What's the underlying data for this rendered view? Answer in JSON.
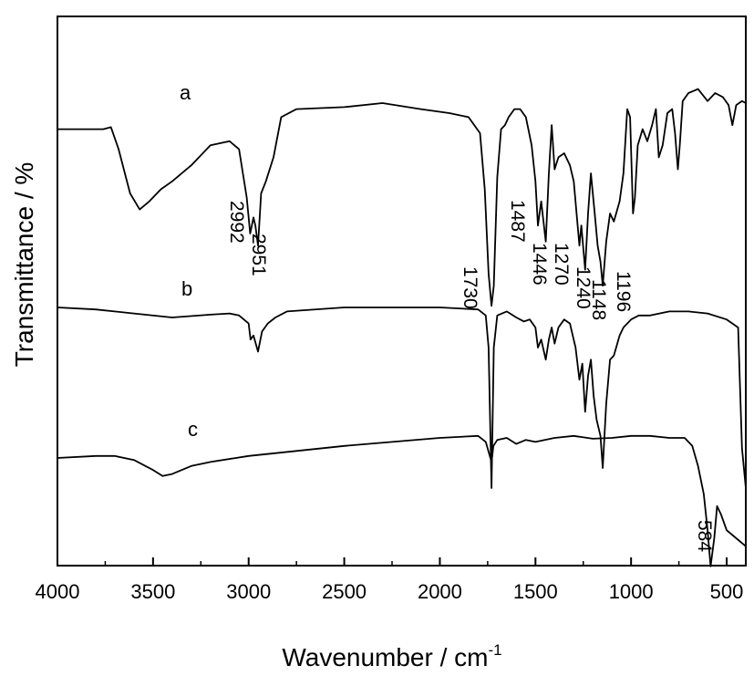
{
  "chart_data": {
    "type": "line",
    "title": "",
    "xlabel": "Wavenumber / cm",
    "xlabel_sup": "-1",
    "ylabel": "Transmittance / %",
    "xlim": [
      4000,
      400
    ],
    "x_reversed": true,
    "xticks": [
      4000,
      3500,
      3000,
      2500,
      2000,
      1500,
      1000,
      500
    ],
    "yticks_shown": false,
    "grid": false,
    "series": [
      {
        "name": "a",
        "points": [
          [
            4000,
            0.09
          ],
          [
            3850,
            0.09
          ],
          [
            3760,
            0.09
          ],
          [
            3720,
            0.085
          ],
          [
            3680,
            0.14
          ],
          [
            3620,
            0.25
          ],
          [
            3570,
            0.29
          ],
          [
            3520,
            0.27
          ],
          [
            3460,
            0.24
          ],
          [
            3400,
            0.22
          ],
          [
            3300,
            0.18
          ],
          [
            3200,
            0.13
          ],
          [
            3100,
            0.12
          ],
          [
            3050,
            0.14
          ],
          [
            3010,
            0.26
          ],
          [
            2992,
            0.35
          ],
          [
            2975,
            0.31
          ],
          [
            2965,
            0.33
          ],
          [
            2951,
            0.38
          ],
          [
            2935,
            0.25
          ],
          [
            2910,
            0.22
          ],
          [
            2870,
            0.16
          ],
          [
            2830,
            0.06
          ],
          [
            2750,
            0.04
          ],
          [
            2500,
            0.035
          ],
          [
            2300,
            0.025
          ],
          [
            2100,
            0.04
          ],
          [
            1950,
            0.05
          ],
          [
            1850,
            0.06
          ],
          [
            1790,
            0.1
          ],
          [
            1765,
            0.24
          ],
          [
            1745,
            0.45
          ],
          [
            1730,
            0.53
          ],
          [
            1718,
            0.48
          ],
          [
            1700,
            0.21
          ],
          [
            1680,
            0.09
          ],
          [
            1660,
            0.08
          ],
          [
            1640,
            0.06
          ],
          [
            1610,
            0.04
          ],
          [
            1580,
            0.04
          ],
          [
            1550,
            0.06
          ],
          [
            1520,
            0.13
          ],
          [
            1500,
            0.22
          ],
          [
            1487,
            0.33
          ],
          [
            1470,
            0.27
          ],
          [
            1446,
            0.37
          ],
          [
            1430,
            0.2
          ],
          [
            1415,
            0.08
          ],
          [
            1400,
            0.19
          ],
          [
            1380,
            0.16
          ],
          [
            1350,
            0.15
          ],
          [
            1320,
            0.18
          ],
          [
            1300,
            0.22
          ],
          [
            1270,
            0.38
          ],
          [
            1260,
            0.33
          ],
          [
            1240,
            0.44
          ],
          [
            1225,
            0.3
          ],
          [
            1210,
            0.2
          ],
          [
            1190,
            0.3
          ],
          [
            1175,
            0.38
          ],
          [
            1160,
            0.42
          ],
          [
            1148,
            0.48
          ],
          [
            1130,
            0.37
          ],
          [
            1110,
            0.3
          ],
          [
            1090,
            0.32
          ],
          [
            1060,
            0.27
          ],
          [
            1040,
            0.2
          ],
          [
            1020,
            0.04
          ],
          [
            1005,
            0.06
          ],
          [
            990,
            0.3
          ],
          [
            980,
            0.26
          ],
          [
            965,
            0.13
          ],
          [
            940,
            0.09
          ],
          [
            915,
            0.12
          ],
          [
            890,
            0.08
          ],
          [
            870,
            0.04
          ],
          [
            855,
            0.16
          ],
          [
            835,
            0.13
          ],
          [
            810,
            0.05
          ],
          [
            785,
            0.04
          ],
          [
            770,
            0.1
          ],
          [
            755,
            0.19
          ],
          [
            745,
            0.13
          ],
          [
            730,
            0.02
          ],
          [
            700,
            0.0
          ],
          [
            650,
            -0.01
          ],
          [
            600,
            0.02
          ],
          [
            560,
            0.0
          ],
          [
            520,
            0.01
          ],
          [
            490,
            0.03
          ],
          [
            470,
            0.08
          ],
          [
            450,
            0.03
          ],
          [
            420,
            0.02
          ],
          [
            400,
            0.025
          ]
        ]
      },
      {
        "name": "b",
        "points": [
          [
            4000,
            0.0
          ],
          [
            3800,
            0.005
          ],
          [
            3600,
            0.015
          ],
          [
            3400,
            0.025
          ],
          [
            3200,
            0.018
          ],
          [
            3100,
            0.015
          ],
          [
            3050,
            0.02
          ],
          [
            3000,
            0.04
          ],
          [
            2990,
            0.08
          ],
          [
            2975,
            0.07
          ],
          [
            2951,
            0.11
          ],
          [
            2930,
            0.06
          ],
          [
            2900,
            0.04
          ],
          [
            2860,
            0.025
          ],
          [
            2800,
            0.01
          ],
          [
            2500,
            0.0
          ],
          [
            2000,
            0.0
          ],
          [
            1800,
            0.005
          ],
          [
            1760,
            0.02
          ],
          [
            1745,
            0.1
          ],
          [
            1730,
            0.45
          ],
          [
            1718,
            0.1
          ],
          [
            1700,
            0.02
          ],
          [
            1650,
            0.01
          ],
          [
            1600,
            0.025
          ],
          [
            1560,
            0.035
          ],
          [
            1530,
            0.03
          ],
          [
            1500,
            0.05
          ],
          [
            1487,
            0.1
          ],
          [
            1470,
            0.08
          ],
          [
            1446,
            0.13
          ],
          [
            1430,
            0.08
          ],
          [
            1415,
            0.05
          ],
          [
            1400,
            0.09
          ],
          [
            1380,
            0.05
          ],
          [
            1350,
            0.03
          ],
          [
            1320,
            0.04
          ],
          [
            1290,
            0.1
          ],
          [
            1270,
            0.18
          ],
          [
            1255,
            0.14
          ],
          [
            1240,
            0.26
          ],
          [
            1225,
            0.17
          ],
          [
            1210,
            0.13
          ],
          [
            1196,
            0.22
          ],
          [
            1180,
            0.28
          ],
          [
            1160,
            0.32
          ],
          [
            1148,
            0.4
          ],
          [
            1130,
            0.24
          ],
          [
            1110,
            0.13
          ],
          [
            1090,
            0.12
          ],
          [
            1060,
            0.07
          ],
          [
            1040,
            0.05
          ],
          [
            1000,
            0.03
          ],
          [
            960,
            0.02
          ],
          [
            900,
            0.02
          ],
          [
            800,
            0.01
          ],
          [
            700,
            0.01
          ],
          [
            600,
            0.015
          ],
          [
            500,
            0.03
          ],
          [
            440,
            0.05
          ],
          [
            420,
            0.35
          ],
          [
            400,
            0.45
          ]
        ]
      },
      {
        "name": "c",
        "points": [
          [
            4000,
            0.0
          ],
          [
            3800,
            -0.005
          ],
          [
            3700,
            -0.005
          ],
          [
            3600,
            0.005
          ],
          [
            3500,
            0.03
          ],
          [
            3450,
            0.045
          ],
          [
            3400,
            0.04
          ],
          [
            3300,
            0.02
          ],
          [
            3200,
            0.01
          ],
          [
            3000,
            -0.005
          ],
          [
            2500,
            -0.03
          ],
          [
            2000,
            -0.05
          ],
          [
            1800,
            -0.055
          ],
          [
            1760,
            -0.04
          ],
          [
            1730,
            0.01
          ],
          [
            1720,
            -0.03
          ],
          [
            1700,
            -0.045
          ],
          [
            1650,
            -0.05
          ],
          [
            1600,
            -0.035
          ],
          [
            1550,
            -0.045
          ],
          [
            1500,
            -0.04
          ],
          [
            1400,
            -0.05
          ],
          [
            1300,
            -0.055
          ],
          [
            1200,
            -0.048
          ],
          [
            1100,
            -0.05
          ],
          [
            1000,
            -0.055
          ],
          [
            900,
            -0.055
          ],
          [
            800,
            -0.05
          ],
          [
            720,
            -0.05
          ],
          [
            680,
            -0.03
          ],
          [
            650,
            0.02
          ],
          [
            620,
            0.09
          ],
          [
            600,
            0.18
          ],
          [
            584,
            0.27
          ],
          [
            565,
            0.2
          ],
          [
            550,
            0.12
          ],
          [
            530,
            0.14
          ],
          [
            500,
            0.18
          ],
          [
            450,
            0.2
          ],
          [
            400,
            0.22
          ]
        ]
      }
    ],
    "series_labels": [
      {
        "text": "a",
        "x": 3650,
        "y": 0.0
      },
      {
        "text": "b",
        "x": 3650,
        "y": -0.05
      },
      {
        "text": "c",
        "x": 3600,
        "y": -0.03
      }
    ],
    "peak_labels": [
      "2992",
      "2951",
      "1730",
      "1487",
      "1446",
      "1270",
      "1240",
      "1196",
      "1148",
      "584"
    ]
  }
}
